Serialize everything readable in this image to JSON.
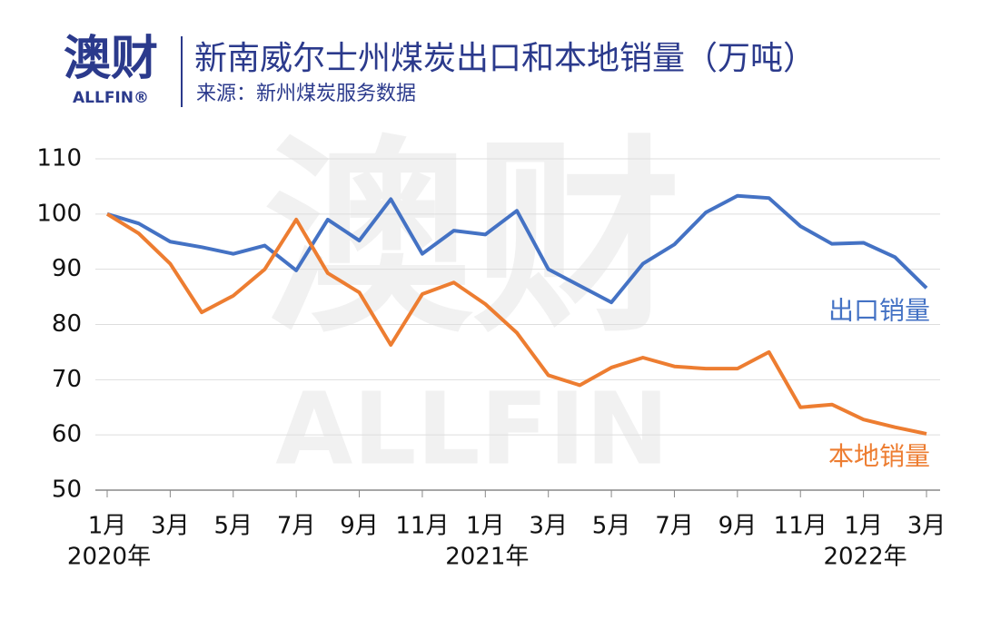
{
  "chart_data": {
    "type": "line",
    "logo": "澳财",
    "logo_sub": "ALLFIN®",
    "title": "新南威尔士州煤炭出口和本地销量（万吨）",
    "subtitle": "来源：新州煤炭服务数据",
    "watermark": "澳财",
    "watermark_sub": "ALLFIN",
    "categories": [
      "1月",
      null,
      "3月",
      null,
      "5月",
      null,
      "7月",
      null,
      "9月",
      null,
      "11月",
      null,
      "1月",
      null,
      "3月",
      null,
      "5月",
      null,
      "7月",
      null,
      "9月",
      null,
      "11月",
      null,
      "1月",
      null,
      "3月"
    ],
    "category_years": [
      "2020年",
      null,
      null,
      null,
      null,
      null,
      null,
      null,
      null,
      null,
      null,
      null,
      "2021年",
      null,
      null,
      null,
      null,
      null,
      null,
      null,
      null,
      null,
      null,
      null,
      "2022年",
      null,
      null
    ],
    "series": [
      {
        "name": "出口销量",
        "color": "#4472c4",
        "values": [
          100,
          98.3,
          95,
          94,
          92.8,
          94.3,
          89.8,
          99,
          95.2,
          102.7,
          92.8,
          97,
          96.3,
          100.6,
          90,
          87,
          84,
          91,
          94.5,
          100.3,
          103.3,
          102.9,
          97.8,
          94.6,
          94.8,
          92.2,
          86.6
        ]
      },
      {
        "name": "本地销量",
        "color": "#ed7d31",
        "values": [
          100,
          96.5,
          91,
          82.2,
          85.2,
          90,
          99,
          89.3,
          85.8,
          76.3,
          85.5,
          87.6,
          83.7,
          78.5,
          70.8,
          69,
          72.2,
          74,
          72.4,
          72,
          72,
          75,
          65,
          65.5,
          62.8,
          61.4,
          60.2
        ]
      }
    ],
    "ylim": [
      50,
      110
    ],
    "yticks": [
      50,
      60,
      70,
      80,
      90,
      100,
      110
    ],
    "grid": true
  }
}
